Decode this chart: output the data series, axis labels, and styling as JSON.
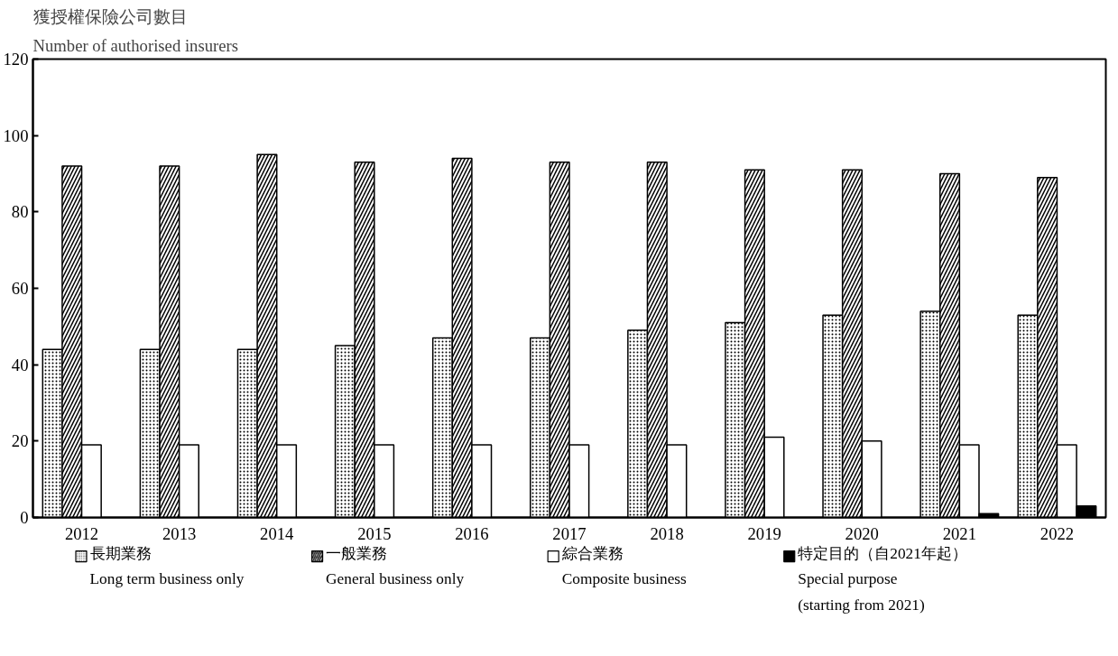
{
  "chart_data": {
    "type": "bar",
    "ylabel": "獲授權保險公司數目\nNumber of authorised insurers",
    "categories": [
      "2012",
      "2013",
      "2014",
      "2015",
      "2016",
      "2017",
      "2018",
      "2019",
      "2020",
      "2021",
      "2022"
    ],
    "series": [
      {
        "name": "長期業務\nLong term business only",
        "color": "#ffffff",
        "values": [
          44,
          44,
          44,
          45,
          47,
          47,
          49,
          51,
          53,
          54,
          53
        ]
      },
      {
        "name": "一般業務\nGeneral business only",
        "color": "#ffffff",
        "values": [
          92,
          92,
          95,
          93,
          94,
          93,
          93,
          91,
          91,
          90,
          89
        ]
      },
      {
        "name": "綜合業務\nComposite business",
        "color": "#ffffff",
        "values": [
          19,
          19,
          19,
          19,
          19,
          19,
          19,
          21,
          20,
          19,
          19
        ]
      },
      {
        "name": "特定目的（自2021年起）\nSpecial purpose\n(starting from 2021)",
        "color": "#000000",
        "values": [
          null,
          null,
          null,
          null,
          null,
          null,
          null,
          null,
          null,
          1,
          3
        ]
      }
    ],
    "ylim": [
      0,
      120
    ],
    "yticks": [
      0,
      20,
      40,
      60,
      80,
      100,
      120
    ],
    "grid": false,
    "legend": "bottom"
  }
}
